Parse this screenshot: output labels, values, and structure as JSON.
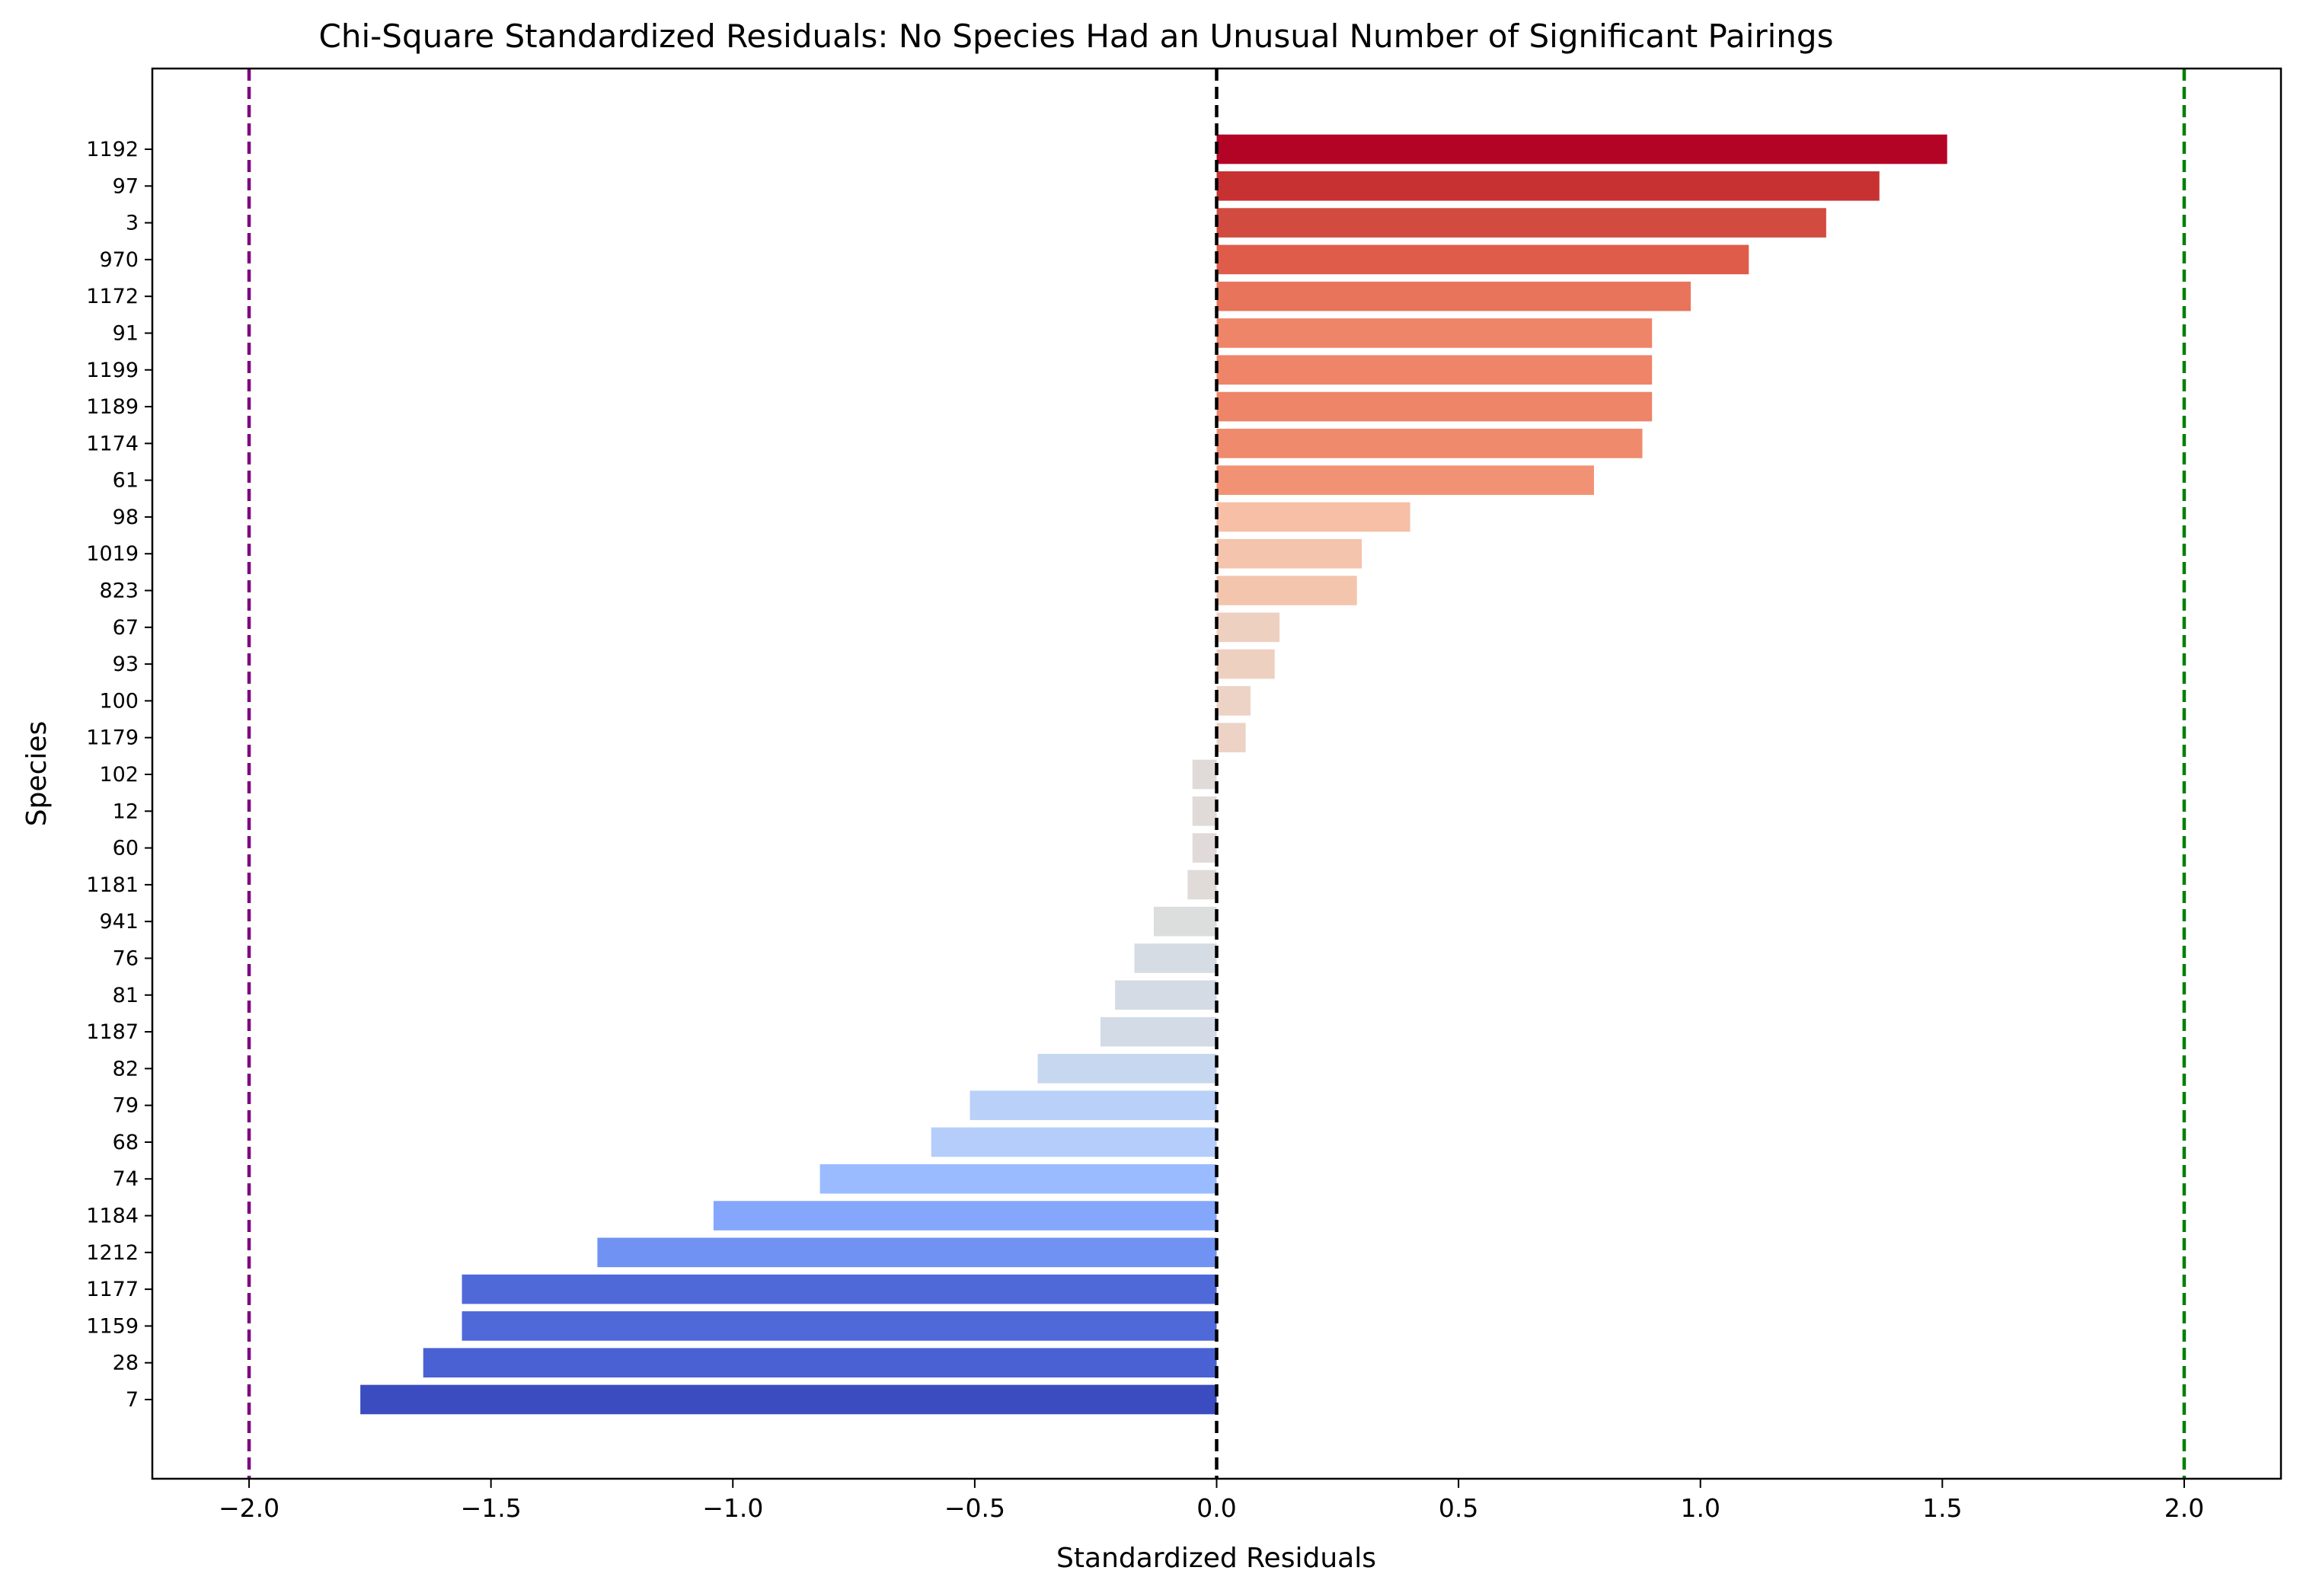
{
  "chart_data": {
    "type": "bar",
    "orientation": "horizontal",
    "title": "Chi-Square Standardized Residuals: No Species Had an Unusual Number of Significant Pairings",
    "xlabel": "Standardized Residuals",
    "ylabel": "Species",
    "xlim": [
      -2.2,
      2.2
    ],
    "xticks": [
      -2.0,
      -1.5,
      -1.0,
      -0.5,
      0.0,
      0.5,
      1.0,
      1.5,
      2.0
    ],
    "xtick_labels": [
      "−2.0",
      "−1.5",
      "−1.0",
      "−0.5",
      "0.0",
      "0.5",
      "1.0",
      "1.5",
      "2.0"
    ],
    "grid": false,
    "colormap": "coolwarm",
    "categories": [
      "1192",
      "97",
      "3",
      "970",
      "1172",
      "91",
      "1199",
      "1189",
      "1174",
      "61",
      "98",
      "1019",
      "823",
      "67",
      "93",
      "100",
      "1179",
      "102",
      "12",
      "60",
      "1181",
      "941",
      "76",
      "81",
      "1187",
      "82",
      "79",
      "68",
      "74",
      "1184",
      "1212",
      "1177",
      "1159",
      "28",
      "7"
    ],
    "values": [
      1.51,
      1.37,
      1.26,
      1.1,
      0.98,
      0.9,
      0.9,
      0.9,
      0.88,
      0.78,
      0.4,
      0.3,
      0.29,
      0.13,
      0.12,
      0.07,
      0.06,
      -0.05,
      -0.05,
      -0.05,
      -0.06,
      -0.13,
      -0.17,
      -0.21,
      -0.24,
      -0.37,
      -0.51,
      -0.59,
      -0.82,
      -1.04,
      -1.28,
      -1.56,
      -1.56,
      -1.64,
      -1.77
    ],
    "colors": [
      "#b40426",
      "#c83132",
      "#d24b40",
      "#e05c4a",
      "#e7745b",
      "#ee8468",
      "#ee8468",
      "#ee8468",
      "#ef8a6c",
      "#f29274",
      "#f6bfa6",
      "#f5c4ac",
      "#f4c5ad",
      "#eed0c0",
      "#eed0c0",
      "#ecd3c5",
      "#ecd3c5",
      "#e0dbd8",
      "#e0dbd8",
      "#e0dbd8",
      "#e0dbd8",
      "#dcdddd",
      "#d6dce4",
      "#d5dbe5",
      "#d3dbe7",
      "#c7d7f0",
      "#b9d0f9",
      "#b5cdfa",
      "#9abbff",
      "#84a7fc",
      "#7093f3",
      "#4f69d9",
      "#4f69d9",
      "#4961d2",
      "#3b4cc0"
    ],
    "reference_lines": [
      {
        "x": -2.0,
        "color": "#800080",
        "style": "dashed"
      },
      {
        "x": 0.0,
        "color": "#000000",
        "style": "dashed"
      },
      {
        "x": 2.0,
        "color": "#008000",
        "style": "dashed"
      }
    ]
  }
}
